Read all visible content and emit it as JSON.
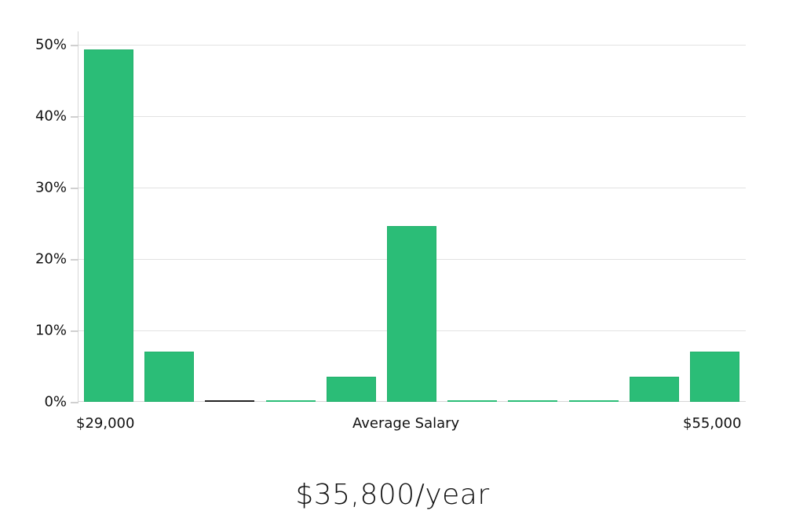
{
  "chart_data": {
    "type": "bar",
    "title": "",
    "xlabel": "Average Salary",
    "ylabel": "",
    "x_range_labels": {
      "min": "$29,000",
      "max": "$55,000"
    },
    "categories": [
      "bin1",
      "bin2",
      "bin3",
      "bin4",
      "bin5",
      "bin6",
      "bin7",
      "bin8",
      "bin9",
      "bin10",
      "bin11"
    ],
    "values": [
      49.3,
      7.0,
      0,
      0,
      3.5,
      24.6,
      0,
      0,
      0,
      3.5,
      7.0
    ],
    "yticks": [
      "0%",
      "10%",
      "20%",
      "30%",
      "40%",
      "50%"
    ],
    "ylim": [
      0,
      52
    ],
    "grid": true,
    "bar_color": "#2bbd77"
  },
  "labels": {
    "x_min": "$29,000",
    "x_center": "Average Salary",
    "x_max": "$55,000",
    "summary": "$35,800/year"
  }
}
